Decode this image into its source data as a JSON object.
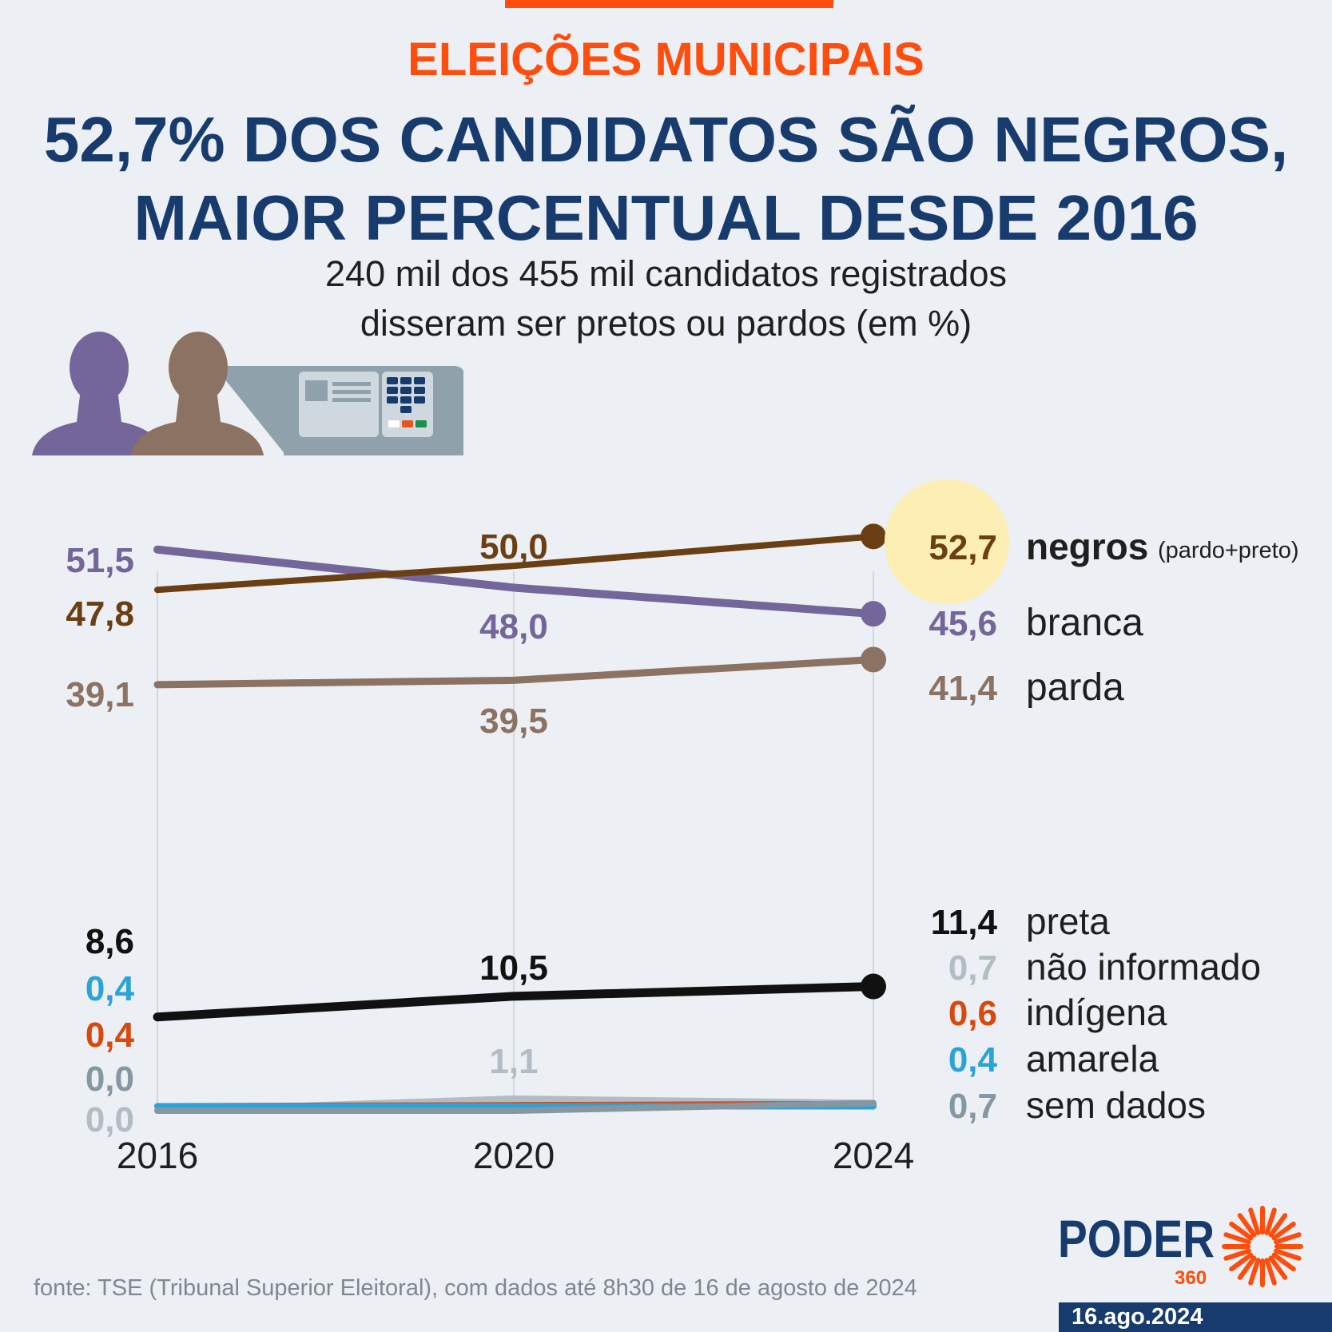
{
  "header": {
    "kicker": "ELEIÇÕES MUNICIPAIS",
    "title_line1": "52,7% DOS CANDIDATOS SÃO NEGROS,",
    "title_line2": "MAIOR PERCENTUAL DESDE 2016",
    "subtitle_line1": "240 mil dos 455 mil candidatos registrados",
    "subtitle_line2": "disseram ser pretos ou pardos (em %)"
  },
  "illustration": {
    "icons": [
      "person-icon",
      "person-icon",
      "voting-machine-icon"
    ]
  },
  "colors": {
    "accent": "#ff4d0d",
    "headline": "#183b6e",
    "highlight_circle": "#fdeeb4"
  },
  "chart_data": {
    "type": "line",
    "x": [
      "2016",
      "2020",
      "2024"
    ],
    "series": [
      {
        "name": "negros",
        "note": "(pardo+preto)",
        "values": [
          47.8,
          50.0,
          52.7
        ],
        "labels": [
          "47,8",
          "50,0",
          "52,7"
        ],
        "color": "#6b3f14",
        "highlighted": true
      },
      {
        "name": "branca",
        "values": [
          51.5,
          48.0,
          45.6
        ],
        "labels": [
          "51,5",
          "48,0",
          "45,6"
        ],
        "color": "#74669a"
      },
      {
        "name": "parda",
        "values": [
          39.1,
          39.5,
          41.4
        ],
        "labels": [
          "39,1",
          "39,5",
          "41,4"
        ],
        "color": "#8c7262"
      },
      {
        "name": "preta",
        "values": [
          8.6,
          10.5,
          11.4
        ],
        "labels": [
          "8,6",
          "10,5",
          "11,4"
        ],
        "color": "#111111"
      },
      {
        "name": "não informado",
        "values": [
          0.0,
          1.1,
          0.7
        ],
        "labels": [
          "0,0",
          "1,1",
          "0,7"
        ],
        "color": "#b2bcc4"
      },
      {
        "name": "indígena",
        "values": [
          0.4,
          0.5,
          0.6
        ],
        "labels": [
          "0,4",
          "",
          "0,6"
        ],
        "color": "#d9480f"
      },
      {
        "name": "amarela",
        "values": [
          0.4,
          0.4,
          0.4
        ],
        "labels": [
          "0,4",
          "",
          "0,4"
        ],
        "color": "#2aa3d9"
      },
      {
        "name": "sem dados",
        "values": [
          0.0,
          0.0,
          0.7
        ],
        "labels": [
          "0,0",
          "",
          "0,7"
        ],
        "color": "#8597a3"
      }
    ],
    "ylim": [
      0,
      55
    ],
    "grid": "vertical lines at each year",
    "legend": "right"
  },
  "footer": {
    "source": "fonte: TSE (Tribunal Superior Eleitoral), com dados até 8h30 de 16 de agosto de 2024",
    "logo_text": "PODER",
    "logo_number": "360",
    "date": "16.ago.2024"
  }
}
